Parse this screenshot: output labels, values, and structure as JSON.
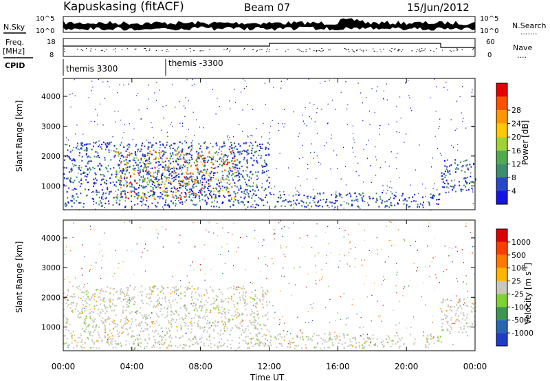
{
  "header": {
    "station": "Kapuskasing (fitACF)",
    "beam": "Beam 07",
    "date": "15/Jun/2012"
  },
  "noise_panel": {
    "left_label": "N.Sky",
    "right_label": "N.Search",
    "right_dots": ".......",
    "top_tick": "10^5",
    "bottom_tick": "10^0"
  },
  "freq_panel": {
    "left_label_1": "Freq.",
    "left_label_2": "[MHz]",
    "left_ticks": [
      "18",
      "8"
    ],
    "right_label": "Nave",
    "right_dots": "....",
    "right_ticks": [
      "60",
      "0"
    ]
  },
  "cpid_panel": {
    "label": "CPID",
    "programs": [
      "themis 3300",
      "themis -3300"
    ]
  },
  "chart_data": [
    {
      "type": "heatmap",
      "xlabel": "Time UT",
      "ylabel": "Slant Range [km]",
      "x_ticks": [
        "00:00",
        "04:00",
        "08:00",
        "12:00",
        "16:00",
        "20:00",
        "00:00"
      ],
      "y_ticks": [
        "1000",
        "2000",
        "3000",
        "4000"
      ],
      "ylim": [
        200,
        4600
      ],
      "colorbar": {
        "label": "Power [dB]",
        "ticks": [
          "4",
          "8",
          "12",
          "16",
          "20",
          "24",
          "28"
        ],
        "colors": [
          "#1414e6",
          "#2846c8",
          "#3c8c6e",
          "#50aa50",
          "#a0d232",
          "#ffc800",
          "#ff9600",
          "#ff5000",
          "#e60000"
        ]
      },
      "features": [
        {
          "name": "evening echoes",
          "x_start": "00:00",
          "x_end": "12:00",
          "range_km": [
            300,
            2500
          ]
        },
        {
          "name": "strong echoes",
          "x_start": "03:00",
          "x_end": "10:00",
          "range_km": [
            600,
            2200
          ]
        },
        {
          "name": "near-range band",
          "x_start": "12:00",
          "x_end": "22:00",
          "range_km": [
            300,
            800
          ]
        },
        {
          "name": "late echoes",
          "x_start": "22:00",
          "x_end": "24:00",
          "range_km": [
            800,
            1900
          ]
        }
      ]
    },
    {
      "type": "heatmap",
      "xlabel": "Time UT",
      "ylabel": "Slant Range [km]",
      "x_ticks": [
        "00:00",
        "04:00",
        "08:00",
        "12:00",
        "16:00",
        "20:00",
        "00:00"
      ],
      "y_ticks": [
        "1000",
        "2000",
        "3000",
        "4000"
      ],
      "ylim": [
        200,
        4600
      ],
      "colorbar": {
        "label": "Velocity [m s^-1]",
        "ticks": [
          "1000",
          "500",
          "100",
          "25",
          "-25",
          "-100",
          "-500",
          "-1000"
        ],
        "colors": [
          "#1e3cc8",
          "#2864b4",
          "#3c9650",
          "#7ed232",
          "#c8c8be",
          "#ffb400",
          "#ff7800",
          "#ff3c00",
          "#dc0000"
        ]
      },
      "features": [
        {
          "name": "ground scatter",
          "x_start": "00:00",
          "x_end": "12:00",
          "range_km": [
            300,
            2400
          ]
        },
        {
          "name": "ground scatter band",
          "x_start": "12:00",
          "x_end": "22:00",
          "range_km": [
            300,
            800
          ]
        },
        {
          "name": "late ground scatter",
          "x_start": "22:00",
          "x_end": "24:00",
          "range_km": [
            800,
            2000
          ]
        }
      ]
    }
  ]
}
